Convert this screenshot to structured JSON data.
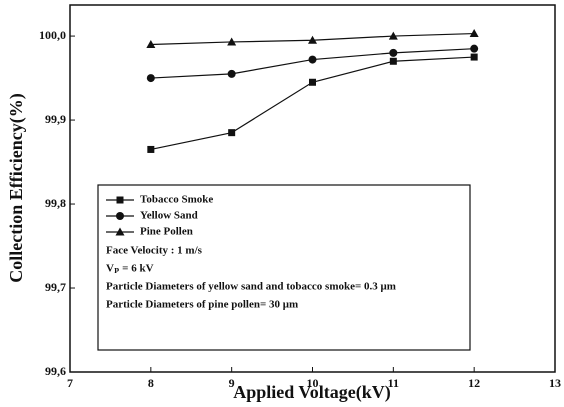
{
  "chart_data": {
    "type": "line",
    "x_label": "Applied Voltage(kV)",
    "y_label": "Collection Efficiency(%)",
    "x": [
      8,
      9,
      10,
      11,
      12
    ],
    "series": [
      {
        "name": "Tobacco Smoke",
        "marker": "square",
        "color": "#111111",
        "values": [
          99.865,
          99.885,
          99.945,
          99.97,
          99.975
        ]
      },
      {
        "name": "Yellow Sand",
        "marker": "circle",
        "color": "#111111",
        "values": [
          99.95,
          99.955,
          99.972,
          99.98,
          99.985
        ]
      },
      {
        "name": "Pine Pollen",
        "marker": "triangle",
        "color": "#111111",
        "values": [
          99.99,
          99.993,
          99.995,
          100.0,
          100.003
        ]
      }
    ],
    "annotations": [
      "Face Velocity : 1 m/s",
      "Vₚ = 6 kV",
      "Particle Diameters of yellow sand and tobacco smoke= 0.3 μm",
      "Particle Diameters of pine pollen= 30 μm"
    ],
    "xlim": [
      7,
      13
    ],
    "xticks": [
      7,
      8,
      9,
      10,
      11,
      12,
      13
    ],
    "ylim": [
      99.6,
      100.037
    ],
    "yticks": [
      {
        "value": 99.6,
        "label": "99,6"
      },
      {
        "value": 99.7,
        "label": "99,7"
      },
      {
        "value": 99.8,
        "label": "99,8"
      },
      {
        "value": 99.9,
        "label": "99,9"
      },
      {
        "value": 100.0,
        "label": "100,0"
      }
    ]
  }
}
